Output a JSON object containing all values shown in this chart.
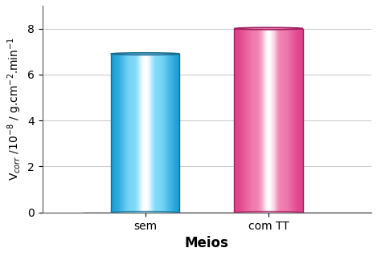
{
  "categories": [
    "sem",
    "com TT"
  ],
  "values": [
    6.9,
    8.0
  ],
  "color_blue_edge": "#1A9FD4",
  "color_blue_mid": "#7DD8F8",
  "color_blue_center": "#FFFFFF",
  "color_pink_edge": "#E0408A",
  "color_pink_mid": "#F080B0",
  "color_pink_center": "#FFFFFF",
  "color_blue_outline": "#1A6A90",
  "color_pink_outline": "#A02060",
  "xlabel": "Meios",
  "ylabel": "V$_{corr}$ /10$^{-8}$ / g.cm$^{-2}$.min$^{-1}$",
  "ylim": [
    0,
    9
  ],
  "yticks": [
    0,
    2,
    4,
    6,
    8
  ],
  "floor_color": "#DCDCDC",
  "bg_color": "#FFFFFF",
  "grid_color": "#CCCCCC",
  "tick_fontsize": 10,
  "label_fontsize": 11
}
